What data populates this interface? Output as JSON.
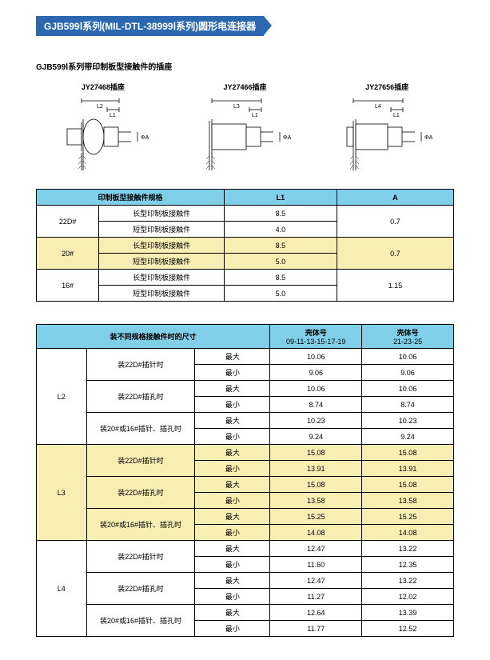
{
  "header": {
    "title": "GJB599Ⅰ系列(MIL-DTL-38999Ⅰ系列)圆形电连接器",
    "subtitle": "GJB599Ⅰ系列带印制板型接触件的插座"
  },
  "drawings": {
    "a": {
      "label": "JY27468插座",
      "dim_vert": "L2",
      "dim_top": "L1",
      "phi": "ΦA"
    },
    "b": {
      "label": "JY27466插座",
      "dim_vert": "L3",
      "dim_top": "L1",
      "phi": "ΦA"
    },
    "c": {
      "label": "JY27656插座",
      "dim_vert": "L4",
      "dim_top": "L1",
      "phi": "ΦA"
    }
  },
  "table1": {
    "headers": {
      "spec": "印制板型接触件规格",
      "l1": "L1",
      "a": "A"
    },
    "rows": [
      {
        "size": "22D#",
        "type": "长型印制板接触件",
        "l1": "8.5",
        "a": "0.7"
      },
      {
        "size": "",
        "type": "短型印制板接触件",
        "l1": "4.0",
        "a": ""
      },
      {
        "size": "20#",
        "type": "长型印制板接触件",
        "l1": "8.5",
        "a": "0.7"
      },
      {
        "size": "",
        "type": "短型印制板接触件",
        "l1": "5.0",
        "a": ""
      },
      {
        "size": "16#",
        "type": "长型印制板接触件",
        "l1": "8.5",
        "a": "1.15"
      },
      {
        "size": "",
        "type": "短型印制板接触件",
        "l1": "5.0",
        "a": ""
      }
    ]
  },
  "table2": {
    "headers": {
      "main": "装不同规格接触件时的尺寸",
      "col1": "壳体号",
      "col1sub": "09-11-13-15-17-19",
      "col2": "壳体号",
      "col2sub": "21-23-25"
    },
    "cond_labels": {
      "a": "装22D#插针时",
      "b": "装22D#插孔时",
      "c": "装20#或16#插针、插孔时"
    },
    "mm": {
      "max": "最大",
      "min": "最小"
    },
    "groups": [
      {
        "dim": "L2",
        "rows": [
          {
            "cond": "a",
            "mm": "max",
            "v1": "10.06",
            "v2": "10.06"
          },
          {
            "cond": "",
            "mm": "min",
            "v1": "9.06",
            "v2": "9.06"
          },
          {
            "cond": "b",
            "mm": "max",
            "v1": "10.06",
            "v2": "10.06"
          },
          {
            "cond": "",
            "mm": "min",
            "v1": "8.74",
            "v2": "8.74"
          },
          {
            "cond": "c",
            "mm": "max",
            "v1": "10.23",
            "v2": "10.23"
          },
          {
            "cond": "",
            "mm": "min",
            "v1": "9.24",
            "v2": "9.24"
          }
        ]
      },
      {
        "dim": "L3",
        "hl": true,
        "rows": [
          {
            "cond": "a",
            "mm": "max",
            "v1": "15.08",
            "v2": "15.08"
          },
          {
            "cond": "",
            "mm": "min",
            "v1": "13.91",
            "v2": "13.91"
          },
          {
            "cond": "b",
            "mm": "max",
            "v1": "15.08",
            "v2": "15.08"
          },
          {
            "cond": "",
            "mm": "min",
            "v1": "13.58",
            "v2": "13.58"
          },
          {
            "cond": "c",
            "mm": "max",
            "v1": "15.25",
            "v2": "15.25"
          },
          {
            "cond": "",
            "mm": "min",
            "v1": "14.08",
            "v2": "14.08"
          }
        ]
      },
      {
        "dim": "L4",
        "rows": [
          {
            "cond": "a",
            "mm": "max",
            "v1": "12.47",
            "v2": "13.22"
          },
          {
            "cond": "",
            "mm": "min",
            "v1": "11.60",
            "v2": "12.35"
          },
          {
            "cond": "b",
            "mm": "max",
            "v1": "12.47",
            "v2": "13.22"
          },
          {
            "cond": "",
            "mm": "min",
            "v1": "11.27",
            "v2": "12.02"
          },
          {
            "cond": "c",
            "mm": "max",
            "v1": "12.64",
            "v2": "13.39"
          },
          {
            "cond": "",
            "mm": "min",
            "v1": "11.77",
            "v2": "12.52"
          }
        ]
      }
    ]
  }
}
